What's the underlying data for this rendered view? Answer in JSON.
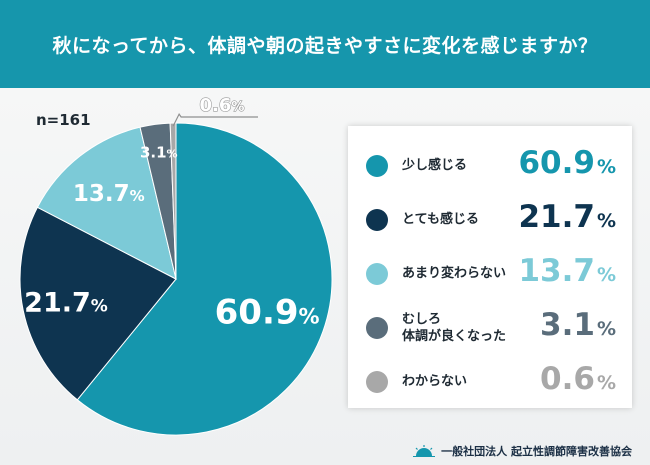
{
  "header": {
    "title": "秋になってから、体調や朝の起きやすさに変化を感じますか？"
  },
  "sample_size": "n=161",
  "chart_data": {
    "type": "pie",
    "title": "秋になってから、体調や朝の起きやすさに変化を感じますか？",
    "n": 161,
    "categories": [
      "少し感じる",
      "とても感じる",
      "あまり変わらない",
      "むしろ体調が良くなった",
      "わからない"
    ],
    "values": [
      60.9,
      21.7,
      13.7,
      3.1,
      0.6
    ],
    "colors": [
      "#1596ad",
      "#0e3450",
      "#7ccad7",
      "#5a6d7b",
      "#a8a8a8"
    ],
    "unit": "%",
    "start_angle": "12 o'clock",
    "direction": "clockwise",
    "legend_position": "right"
  },
  "slice_labels": [
    "60.9",
    "21.7",
    "13.7",
    "3.1",
    "0.6"
  ],
  "legend": [
    {
      "label_lines": [
        "少し感じる"
      ],
      "value": "60.9",
      "unit": "%",
      "color": "#1596ad"
    },
    {
      "label_lines": [
        "とても感じる"
      ],
      "value": "21.7",
      "unit": "%",
      "color": "#0e3450"
    },
    {
      "label_lines": [
        "あまり変わらない"
      ],
      "value": "13.7",
      "unit": "%",
      "color": "#7ccad7"
    },
    {
      "label_lines": [
        "むしろ",
        "体調が良くなった"
      ],
      "value": "3.1",
      "unit": "%",
      "color": "#5a6d7b"
    },
    {
      "label_lines": [
        "わからない"
      ],
      "value": "0.6",
      "unit": "%",
      "color": "#a8a8a8"
    }
  ],
  "footer": {
    "org": "一般社団法人 起立性調節障害改善協会"
  }
}
